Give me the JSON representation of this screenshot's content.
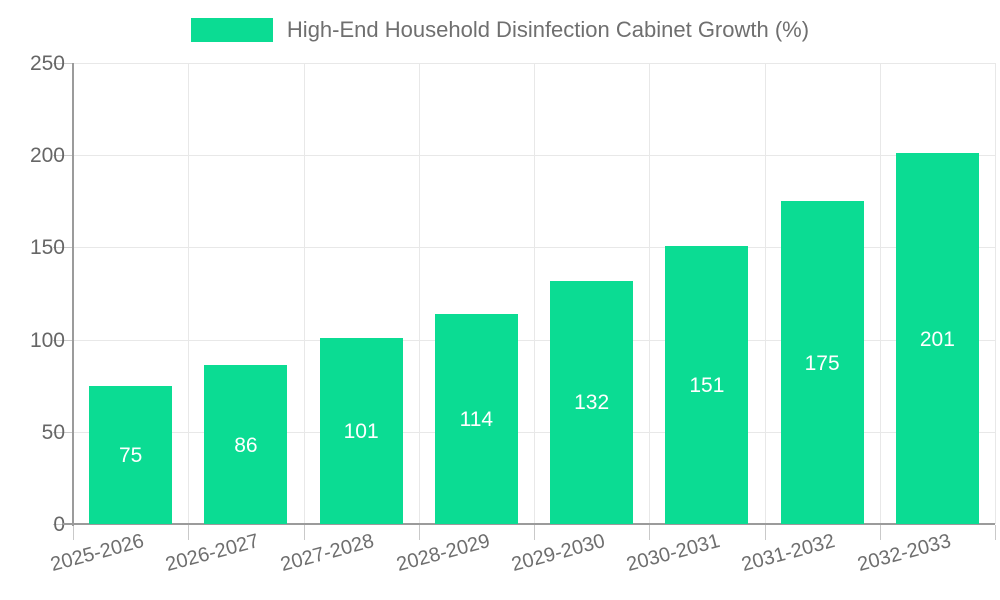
{
  "legend": {
    "label": "High-End Household Disinfection Cabinet Growth (%)"
  },
  "chart_data": {
    "type": "bar",
    "title": "High-End Household Disinfection Cabinet Growth (%)",
    "series_name": "High-End Household Disinfection Cabinet Growth (%)",
    "categories": [
      "2025-2026",
      "2026-2027",
      "2027-2028",
      "2028-2029",
      "2029-2030",
      "2030-2031",
      "2031-2032",
      "2032-2033"
    ],
    "values": [
      75,
      86,
      101,
      114,
      132,
      151,
      175,
      201
    ],
    "xlabel": "",
    "ylabel": "",
    "ylim": [
      0,
      250
    ],
    "yticks": [
      0,
      50,
      100,
      150,
      200,
      250
    ],
    "grid": true,
    "legend_position": "top",
    "value_labels_position": "inside-center",
    "value_label_color": "#ffffff"
  },
  "colors": {
    "bar": "#0bdc93",
    "grid": "#e8e8e8",
    "axis": "#9b9b9b",
    "tick": "#c9c9c9",
    "y_label": "#666666",
    "x_label": "#6e6e6e",
    "legend_text": "#6f6f6f",
    "background": "#ffffff"
  }
}
